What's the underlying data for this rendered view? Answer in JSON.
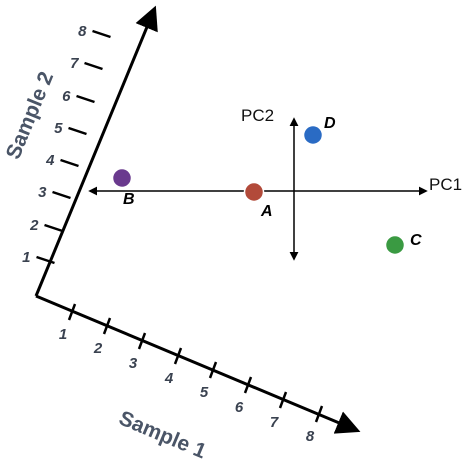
{
  "figure": {
    "sample_axes": {
      "x_title": "Sample 1",
      "y_title": "Sample 2",
      "x_ticks": [
        "1",
        "2",
        "3",
        "4",
        "5",
        "6",
        "7",
        "8"
      ],
      "y_ticks": [
        "1",
        "2",
        "3",
        "4",
        "5",
        "6",
        "7",
        "8"
      ]
    },
    "pc_axes": {
      "pc1_label": "PC1",
      "pc2_label": "PC2"
    },
    "points": [
      {
        "label": "A",
        "color": "#b24a3a"
      },
      {
        "label": "B",
        "color": "#6a3a8e"
      },
      {
        "label": "C",
        "color": "#3a9a42"
      },
      {
        "label": "D",
        "color": "#2a6bc4"
      }
    ]
  }
}
